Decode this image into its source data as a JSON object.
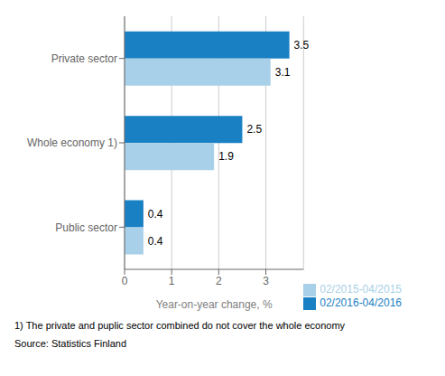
{
  "chart_data": {
    "type": "bar",
    "orientation": "horizontal",
    "categories": [
      "Public sector",
      "Whole economy 1)",
      "Private sector"
    ],
    "series": [
      {
        "name": "02/2016-04/2016",
        "color": "#1a80c4",
        "values": [
          0.4,
          2.5,
          3.5
        ]
      },
      {
        "name": "02/2015-04/2015",
        "color": "#a8d0e8",
        "values": [
          0.4,
          1.9,
          3.1
        ]
      }
    ],
    "xlabel": "Year-on-year change, %",
    "xlim": [
      0,
      3.8
    ],
    "xticks": [
      0,
      1,
      2,
      3
    ],
    "grid": true,
    "legend": "lower right",
    "data_labels": true,
    "annotations": [
      "1) The private and puplic sector combined do not cover the whole economy",
      "Source: Statistics Finland"
    ]
  }
}
